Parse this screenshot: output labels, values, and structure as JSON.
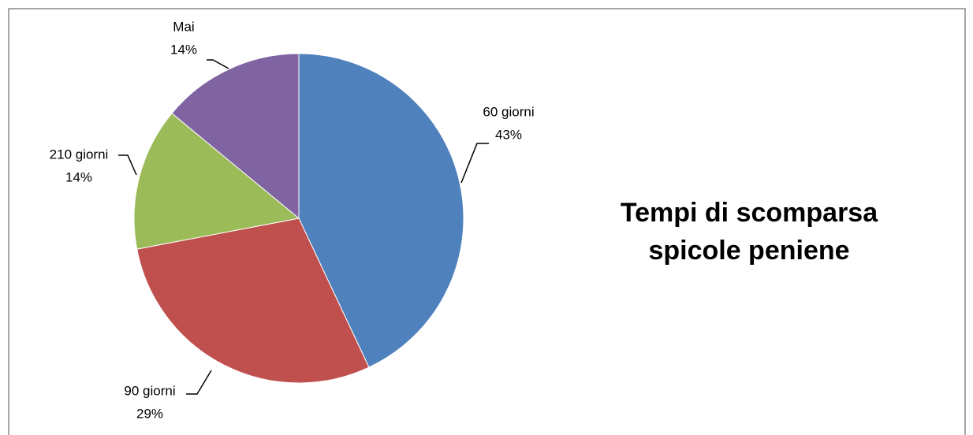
{
  "chart_data": {
    "type": "pie",
    "title": "Tempi di scomparsa spicole peniene",
    "categories": [
      "60 giorni",
      "90 giorni",
      "210 giorni",
      "Mai"
    ],
    "values": [
      43,
      29,
      14,
      14
    ],
    "value_labels": [
      "43%",
      "29%",
      "14%",
      "14%"
    ],
    "colors": [
      "#4f81bd",
      "#c0504d",
      "#9bbb59",
      "#8064a2"
    ]
  }
}
